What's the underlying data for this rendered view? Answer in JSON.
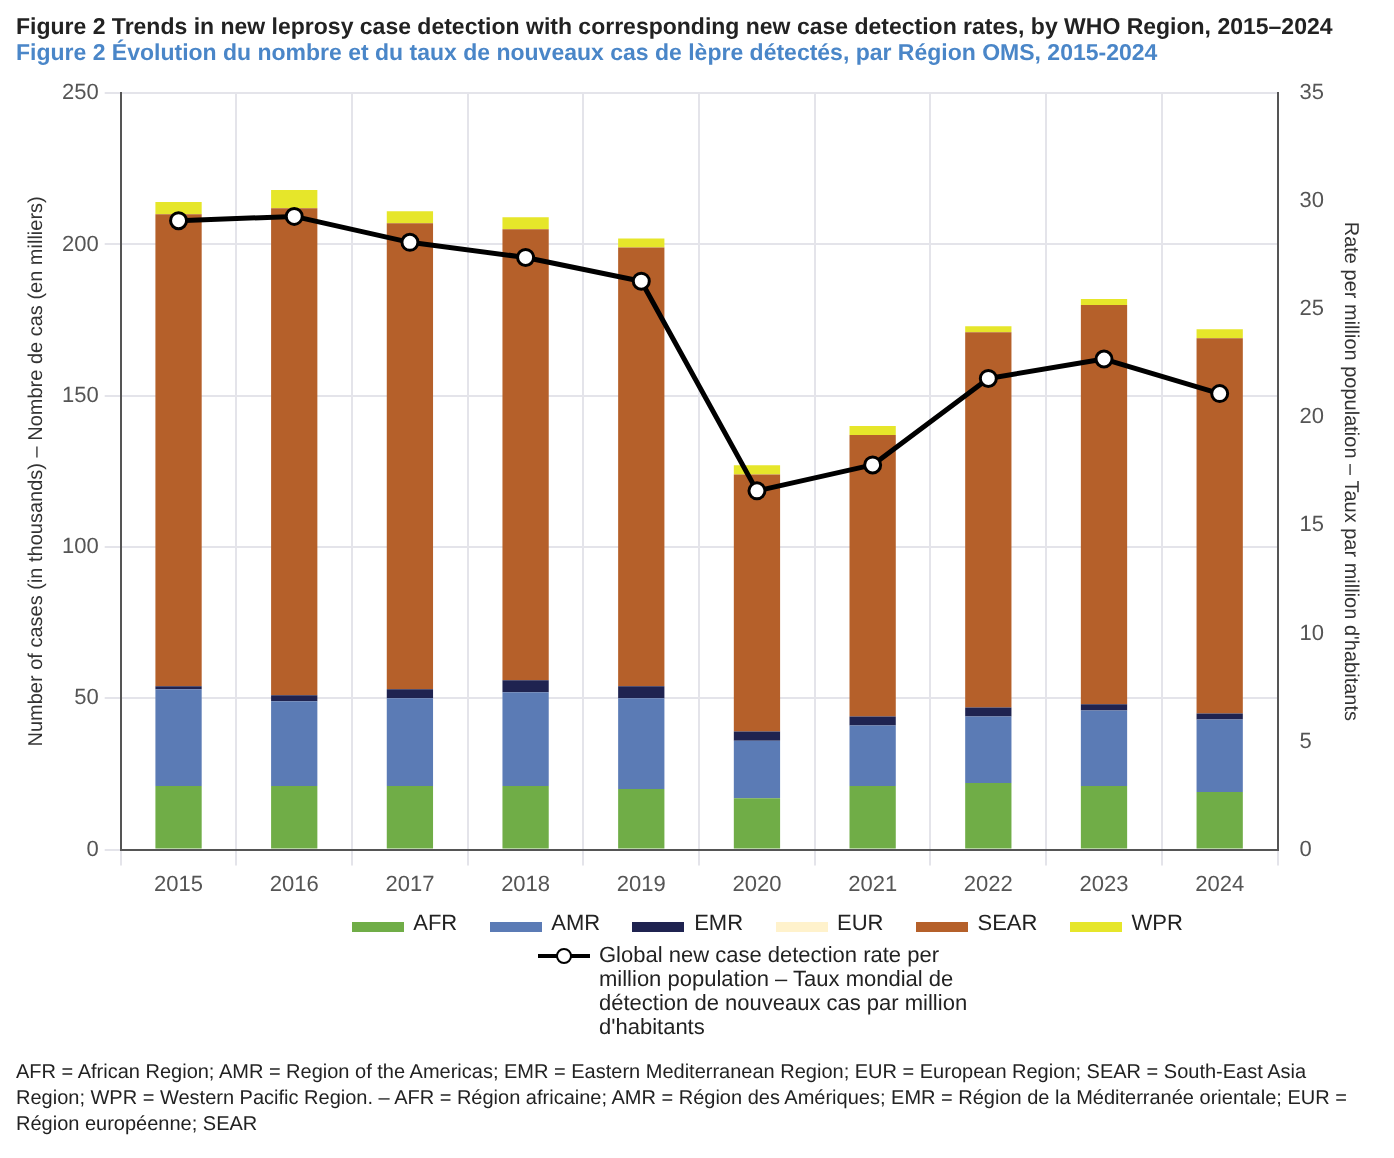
{
  "chart_data": {
    "type": "bar",
    "title": "Figure 2 Trends in new leprosy case detection with corresponding new case detection rates, by WHO Region, 2015–2024",
    "subtitle": "Figure 2 Évolution du nombre et du taux de nouveaux cas de lèpre détectés, par Région OMS, 2015-2024",
    "ylabel": "Number of cases (in thousands) – Nombre de cas (en milliers)",
    "y2label": "Rate per million population – Taux par million d'habitants",
    "categories": [
      "2015",
      "2016",
      "2017",
      "2018",
      "2019",
      "2020",
      "2021",
      "2022",
      "2023",
      "2024"
    ],
    "stacked": true,
    "grid": true,
    "legend": "bottom",
    "series": [
      {
        "name": "AFR",
        "color": "#70ad47",
        "values": [
          21,
          21,
          21,
          21,
          20,
          17,
          21,
          22,
          21,
          19
        ]
      },
      {
        "name": "AMR",
        "color": "#5b7bb5",
        "values": [
          32,
          28,
          29,
          31,
          30,
          19,
          20,
          22,
          25,
          24
        ]
      },
      {
        "name": "EMR",
        "color": "#1f2350",
        "values": [
          1,
          2,
          3,
          4,
          4,
          3,
          3,
          3,
          2,
          2
        ]
      },
      {
        "name": "EUR",
        "color": "#fff2cc",
        "values": [
          0,
          0,
          0,
          0,
          0,
          0,
          0,
          0,
          0,
          0
        ]
      },
      {
        "name": "SEAR",
        "color": "#b5602a",
        "values": [
          156,
          161,
          154,
          149,
          145,
          85,
          93,
          124,
          132,
          124
        ]
      },
      {
        "name": "WPR",
        "color": "#e6e62a",
        "values": [
          4,
          6,
          4,
          4,
          3,
          3,
          3,
          2,
          2,
          3
        ]
      },
      {
        "name": "Global new case detection rate per million population – Taux mondial de détection de nouveaux cas par million d'habitants",
        "type": "line",
        "axis": "y2",
        "color": "#000000",
        "marker": "circle",
        "values": [
          29.1,
          29.3,
          28.1,
          27.4,
          26.3,
          16.6,
          17.8,
          21.8,
          22.7,
          21.1
        ]
      }
    ],
    "ylim": [
      0,
      250
    ],
    "yticks": [
      0,
      50,
      100,
      150,
      200,
      250
    ],
    "y2lim": [
      0,
      35
    ],
    "y2ticks": [
      0,
      5,
      10,
      15,
      20,
      25,
      30,
      35
    ],
    "annotations": [
      "AFR = African Region; AMR = Region of the Americas; EMR = Eastern Mediterranean Region; EUR = European Region; SEAR = South-East Asia Region; WPR = Western Pacific Region. – AFR = Région africaine; AMR = Région des Amériques; EMR = Région de la Méditerranée orientale; EUR = Région européenne; SEAR"
    ]
  }
}
